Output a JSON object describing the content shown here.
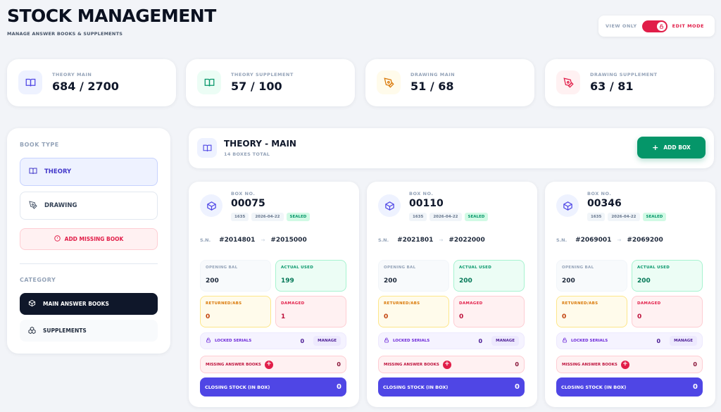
{
  "page": {
    "title": "STOCK MANAGEMENT",
    "subtitle": "MANAGE ANSWER BOOKS & SUPPLEMENTS"
  },
  "mode_switch": {
    "off_label": "VIEW ONLY",
    "on_label": "EDIT MODE",
    "enabled": true,
    "accent": "#e11d48"
  },
  "stats": [
    {
      "label": "THEORY MAIN",
      "value": "684 / 2700",
      "icon": "book-open-icon",
      "color": "#4f46e5"
    },
    {
      "label": "THEORY SUPPLEMENT",
      "value": "57 / 100",
      "icon": "book-open-icon",
      "color": "#059669"
    },
    {
      "label": "DRAWING MAIN",
      "value": "51 / 68",
      "icon": "pen-tool-icon",
      "color": "#d97706"
    },
    {
      "label": "DRAWING SUPPLEMENT",
      "value": "63 / 81",
      "icon": "pen-tool-icon",
      "color": "#e11d48"
    }
  ],
  "sidebar": {
    "book_type_heading": "BOOK TYPE",
    "theory_label": "THEORY",
    "drawing_label": "DRAWING",
    "add_missing_label": "ADD MISSING BOOK",
    "category_heading": "CATEGORY",
    "main_books_label": "MAIN ANSWER BOOKS",
    "supplements_label": "SUPPLEMENTS"
  },
  "header": {
    "title": "THEORY - MAIN",
    "subtitle": "14 BOXES TOTAL",
    "add_box_label": "ADD BOX"
  },
  "box_labels": {
    "box_no": "BOX NO.",
    "sn": "S.N.",
    "opening": "OPENING BAL",
    "actual_used": "ACTUAL USED",
    "returned": "RETURNED/ABS",
    "damaged": "DAMAGED",
    "locked": "LOCKED SERIALS",
    "manage": "MANAGE",
    "missing": "MISSING ANSWER BOOKS",
    "closing": "CLOSING STOCK (IN BOX)"
  },
  "boxes": [
    {
      "number": "00075",
      "code": "1635",
      "date": "2026-04-22",
      "status": "SEALED",
      "sn_from": "#2014801",
      "sn_to": "#2015000",
      "opening": "200",
      "used": "199",
      "returned": "0",
      "damaged": "1",
      "locked": "0",
      "missing": "0",
      "closing": "0"
    },
    {
      "number": "00110",
      "code": "1635",
      "date": "2026-04-22",
      "status": "SEALED",
      "sn_from": "#2021801",
      "sn_to": "#2022000",
      "opening": "200",
      "used": "200",
      "returned": "0",
      "damaged": "0",
      "locked": "0",
      "missing": "0",
      "closing": "0"
    },
    {
      "number": "00346",
      "code": "1635",
      "date": "2026-04-22",
      "status": "SEALED",
      "sn_from": "#2069001",
      "sn_to": "#2069200",
      "opening": "200",
      "used": "200",
      "returned": "0",
      "damaged": "0",
      "locked": "0",
      "missing": "0",
      "closing": "0"
    }
  ]
}
